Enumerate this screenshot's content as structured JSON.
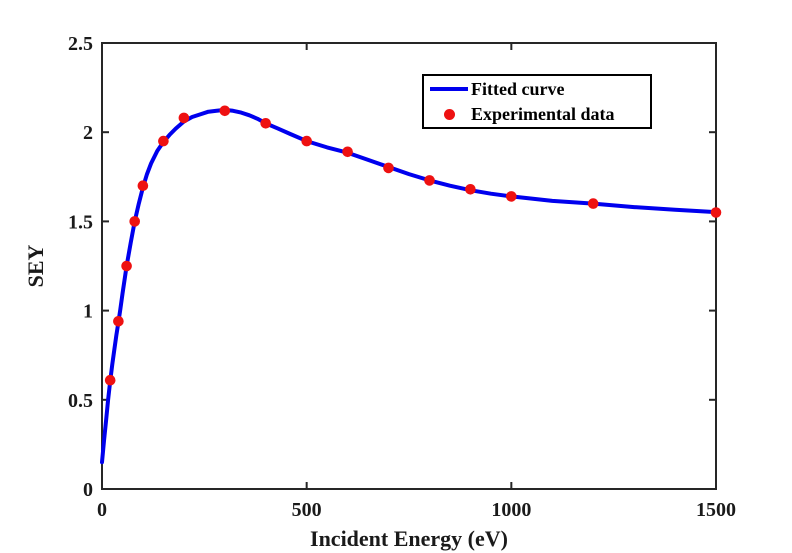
{
  "figure": {
    "background": "#ffffff",
    "axis_color": "#262626",
    "text_color": "#1a1a1a"
  },
  "chart_data": {
    "type": "line",
    "title": "",
    "xlabel": "Incident Energy (eV)",
    "ylabel": "SEY",
    "xlim": [
      0,
      1500
    ],
    "ylim": [
      0,
      2.5
    ],
    "grid": false,
    "xticks": {
      "values": [
        0,
        500,
        1000,
        1500
      ],
      "labels": [
        "0",
        "500",
        "1000",
        "1500"
      ]
    },
    "yticks": {
      "values": [
        0,
        0.5,
        1,
        1.5,
        2,
        2.5
      ],
      "labels": [
        "0",
        "0.5",
        "1",
        "1.5",
        "2",
        "2.5"
      ]
    },
    "legend": {
      "position": "upper-right-inside",
      "entries": [
        {
          "label": "Fitted curve",
          "type": "line",
          "color": "#0000EE"
        },
        {
          "label": "Experimental data",
          "type": "marker",
          "color": "#EE1111"
        }
      ]
    },
    "series": [
      {
        "name": "Fitted curve",
        "type": "line",
        "color": "#0000EE",
        "line_width": 4,
        "points": [
          [
            0,
            0.15
          ],
          [
            5,
            0.27
          ],
          [
            10,
            0.385
          ],
          [
            15,
            0.5
          ],
          [
            20,
            0.605
          ],
          [
            25,
            0.695
          ],
          [
            30,
            0.78
          ],
          [
            35,
            0.86
          ],
          [
            40,
            0.935
          ],
          [
            45,
            1.01
          ],
          [
            50,
            1.095
          ],
          [
            60,
            1.25
          ],
          [
            70,
            1.38
          ],
          [
            80,
            1.5
          ],
          [
            90,
            1.6
          ],
          [
            100,
            1.69
          ],
          [
            110,
            1.765
          ],
          [
            120,
            1.825
          ],
          [
            135,
            1.895
          ],
          [
            150,
            1.945
          ],
          [
            165,
            1.985
          ],
          [
            180,
            2.02
          ],
          [
            200,
            2.06
          ],
          [
            220,
            2.085
          ],
          [
            240,
            2.1
          ],
          [
            260,
            2.115
          ],
          [
            280,
            2.12
          ],
          [
            300,
            2.125
          ],
          [
            320,
            2.12
          ],
          [
            340,
            2.11
          ],
          [
            360,
            2.095
          ],
          [
            380,
            2.075
          ],
          [
            400,
            2.05
          ],
          [
            430,
            2.02
          ],
          [
            460,
            1.99
          ],
          [
            500,
            1.95
          ],
          [
            550,
            1.915
          ],
          [
            600,
            1.885
          ],
          [
            650,
            1.845
          ],
          [
            700,
            1.805
          ],
          [
            750,
            1.765
          ],
          [
            800,
            1.73
          ],
          [
            850,
            1.7
          ],
          [
            900,
            1.675
          ],
          [
            950,
            1.655
          ],
          [
            1000,
            1.64
          ],
          [
            1100,
            1.615
          ],
          [
            1200,
            1.6
          ],
          [
            1300,
            1.58
          ],
          [
            1400,
            1.565
          ],
          [
            1500,
            1.552
          ]
        ]
      },
      {
        "name": "Experimental data",
        "type": "scatter",
        "color": "#EE1111",
        "marker": "circle",
        "marker_radius": 5.3,
        "points": [
          [
            20,
            0.61
          ],
          [
            40,
            0.94
          ],
          [
            60,
            1.25
          ],
          [
            80,
            1.5
          ],
          [
            100,
            1.7
          ],
          [
            150,
            1.95
          ],
          [
            200,
            2.08
          ],
          [
            300,
            2.12
          ],
          [
            400,
            2.05
          ],
          [
            500,
            1.95
          ],
          [
            600,
            1.89
          ],
          [
            700,
            1.8
          ],
          [
            800,
            1.73
          ],
          [
            900,
            1.68
          ],
          [
            1000,
            1.64
          ],
          [
            1200,
            1.6
          ],
          [
            1500,
            1.55
          ]
        ]
      }
    ]
  }
}
